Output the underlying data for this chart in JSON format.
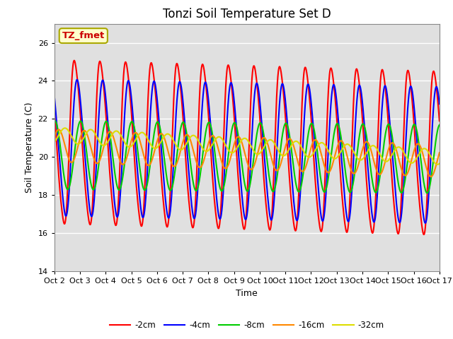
{
  "title": "Tonzi Soil Temperature Set D",
  "xlabel": "Time",
  "ylabel": "Soil Temperature (C)",
  "ylim": [
    14,
    27
  ],
  "annotation_text": "TZ_fmet",
  "legend_labels": [
    "-2cm",
    "-4cm",
    "-8cm",
    "-16cm",
    "-32cm"
  ],
  "line_colors": [
    "#ff0000",
    "#0000ff",
    "#00cc00",
    "#ff8800",
    "#dddd00"
  ],
  "line_widths": [
    1.5,
    1.5,
    1.5,
    1.5,
    1.5
  ],
  "background_color": "#e0e0e0",
  "xtick_labels": [
    "Oct 2",
    "Oct 3",
    "Oct 4",
    "Oct 5",
    "Oct 6",
    "Oct 7",
    "Oct 8",
    "Oct 9",
    "Oct 10",
    "Oct 11",
    "Oct 12",
    "Oct 13",
    "Oct 14",
    "Oct 15",
    "Oct 16",
    "Oct 17"
  ],
  "grid_color": "#ffffff",
  "title_fontsize": 12,
  "axis_fontsize": 9,
  "tick_fontsize": 8,
  "yticks": [
    14,
    16,
    18,
    20,
    22,
    24,
    26
  ],
  "figsize": [
    6.4,
    4.8
  ],
  "dpi": 100
}
